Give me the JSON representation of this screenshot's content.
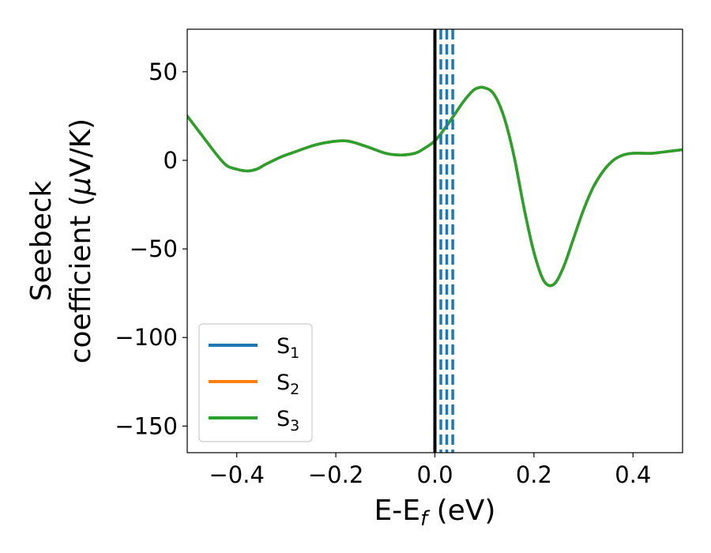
{
  "chart_data": {
    "type": "line",
    "title": "",
    "xlabel": {
      "main": "E-E",
      "sub": "f",
      "unit": " (eV)"
    },
    "ylabel": {
      "line1": "Seebeck",
      "line2_prefix": "coefficient  (",
      "mu": "μ",
      "line2_suffix": "V/K)"
    },
    "xlim": [
      -0.5,
      0.5
    ],
    "ylim": [
      -165,
      74
    ],
    "xticks": [
      -0.4,
      -0.2,
      0.0,
      0.2,
      0.4
    ],
    "xtick_labels": [
      "−0.4",
      "−0.2",
      "0.0",
      "0.2",
      "0.4"
    ],
    "yticks": [
      50,
      0,
      -50,
      -100,
      -150
    ],
    "ytick_labels": [
      "50",
      "0",
      "−50",
      "−100",
      "−150"
    ],
    "grid": false,
    "legend_position": "lower-left",
    "vertical_lines": [
      {
        "x": 0.0,
        "color": "#000000",
        "style": "solid"
      },
      {
        "x": 0.012,
        "color": "#1f77b4",
        "style": "dashed"
      },
      {
        "x": 0.024,
        "color": "#1f77b4",
        "style": "dashed"
      },
      {
        "x": 0.036,
        "color": "#1f77b4",
        "style": "dashed"
      }
    ],
    "x": [
      -0.5,
      -0.47,
      -0.44,
      -0.42,
      -0.4,
      -0.38,
      -0.36,
      -0.34,
      -0.31,
      -0.28,
      -0.25,
      -0.22,
      -0.18,
      -0.14,
      -0.1,
      -0.07,
      -0.04,
      -0.02,
      0.0,
      0.02,
      0.04,
      0.06,
      0.08,
      0.1,
      0.12,
      0.14,
      0.16,
      0.18,
      0.2,
      0.22,
      0.24,
      0.26,
      0.28,
      0.3,
      0.32,
      0.34,
      0.36,
      0.38,
      0.4,
      0.42,
      0.44,
      0.47,
      0.5
    ],
    "series": [
      {
        "name": "S",
        "sub": "1",
        "color": "#1f77b4",
        "values": [
          25,
          14,
          3,
          -3,
          -5,
          -6,
          -5,
          -2,
          2,
          5,
          8,
          10,
          11,
          8,
          4,
          3,
          4,
          7,
          11,
          18,
          26,
          34,
          40,
          41,
          37,
          24,
          2,
          -27,
          -52,
          -68,
          -70,
          -60,
          -44,
          -28,
          -15,
          -6,
          0,
          3,
          4,
          4,
          4,
          5,
          6
        ]
      },
      {
        "name": "S",
        "sub": "2",
        "color": "#ff7f0e",
        "values": [
          25,
          14,
          3,
          -3,
          -5,
          -6,
          -5,
          -2,
          2,
          5,
          8,
          10,
          11,
          8,
          4,
          3,
          4,
          7,
          11,
          18,
          26,
          34,
          40,
          41,
          37,
          24,
          2,
          -27,
          -52,
          -68,
          -70,
          -60,
          -44,
          -28,
          -15,
          -6,
          0,
          3,
          4,
          4,
          4,
          5,
          6
        ]
      },
      {
        "name": "S",
        "sub": "3",
        "color": "#2ca02c",
        "values": [
          25,
          14,
          3,
          -3,
          -5,
          -6,
          -5,
          -2,
          2,
          5,
          8,
          10,
          11,
          8,
          4,
          3,
          4,
          7,
          11,
          18,
          26,
          34,
          40,
          41,
          37,
          24,
          2,
          -27,
          -52,
          -68,
          -70,
          -60,
          -44,
          -28,
          -15,
          -6,
          0,
          3,
          4,
          4,
          4,
          5,
          6
        ]
      }
    ]
  }
}
